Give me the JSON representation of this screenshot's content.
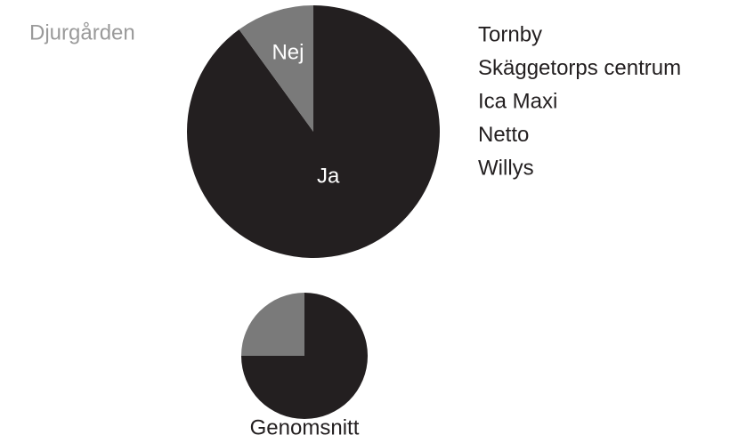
{
  "chart_data": [
    {
      "type": "pie",
      "title": "Djurgården",
      "categories": [
        "Ja",
        "Nej"
      ],
      "values": [
        90,
        10
      ],
      "colors": [
        "#231f20",
        "#7a7a7a"
      ]
    },
    {
      "type": "pie",
      "title": "Genomsnitt",
      "categories": [
        null,
        null
      ],
      "values": [
        75,
        25
      ],
      "colors": [
        "#231f20",
        "#7a7a7a"
      ]
    }
  ],
  "stores": [
    "Tornby",
    "Skäggetorps centrum",
    "Ica Maxi",
    "Netto",
    "Willys"
  ]
}
